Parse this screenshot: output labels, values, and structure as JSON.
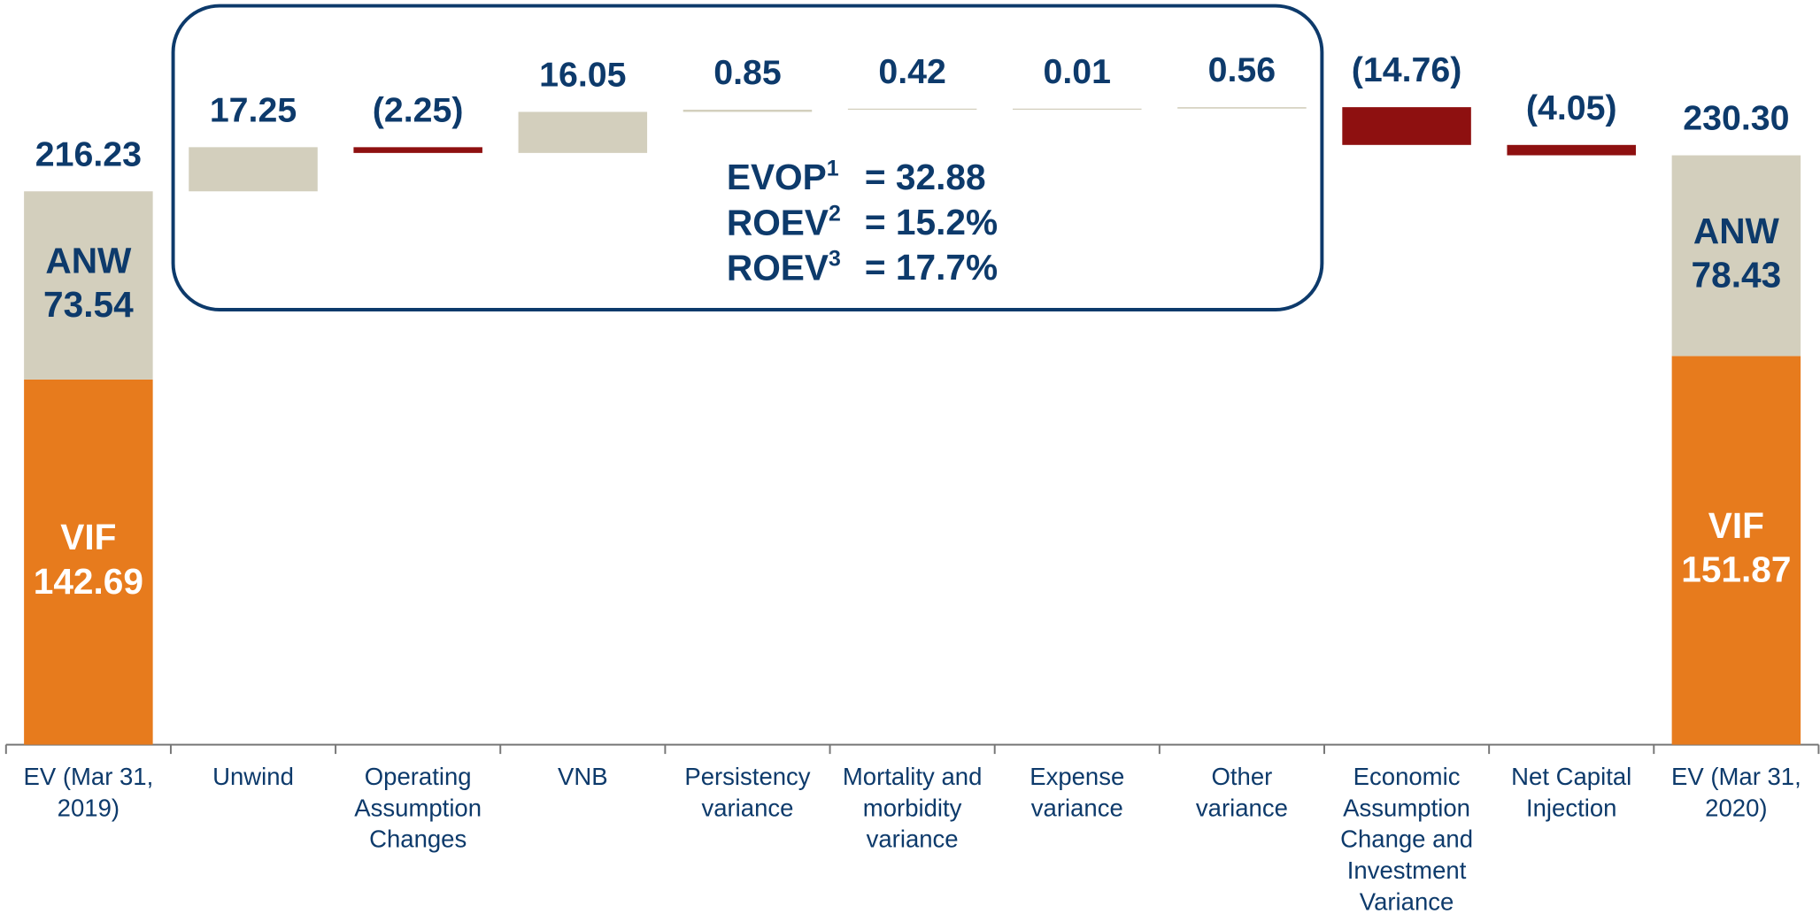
{
  "chart_data": {
    "type": "waterfall",
    "categories": [
      [
        "EV (Mar 31,",
        "2019)"
      ],
      [
        "Unwind"
      ],
      [
        "Operating",
        "Assumption",
        "Changes"
      ],
      [
        "VNB"
      ],
      [
        "Persistency",
        "variance"
      ],
      [
        "Mortality and",
        "morbidity",
        "variance"
      ],
      [
        "Expense",
        "variance"
      ],
      [
        "Other",
        "variance"
      ],
      [
        "Economic",
        "Assumption",
        "Change and",
        "Investment",
        "Variance"
      ],
      [
        "Net Capital",
        "Injection"
      ],
      [
        "EV (Mar 31,",
        "2020)"
      ]
    ],
    "values": [
      216.23,
      17.25,
      -2.25,
      16.05,
      0.85,
      0.42,
      0.01,
      0.56,
      -14.76,
      -4.05,
      230.3
    ],
    "value_labels": [
      "216.23",
      "17.25",
      "(2.25)",
      "16.05",
      "0.85",
      "0.42",
      "0.01",
      "0.56",
      "(14.76)",
      "(4.05)",
      "230.30"
    ],
    "series": [
      {
        "name": "VIF",
        "color": "#e77b1d",
        "values": [
          142.69,
          null,
          null,
          null,
          null,
          null,
          null,
          null,
          null,
          null,
          151.87
        ]
      },
      {
        "name": "ANW",
        "color": "#d3cfbd",
        "values": [
          73.54,
          null,
          null,
          null,
          null,
          null,
          null,
          null,
          null,
          null,
          78.43
        ]
      }
    ],
    "positive_color": "#d3cfbd",
    "negative_color": "#8e1010",
    "ylim": [
      0,
      291
    ],
    "annotations": [
      {
        "name": "EVOP",
        "note": "1",
        "text": "= 32.88"
      },
      {
        "name": "ROEV",
        "note": "2",
        "text": "= 15.2%"
      },
      {
        "name": "ROEV",
        "note": "3",
        "text": "= 17.7%"
      }
    ]
  }
}
